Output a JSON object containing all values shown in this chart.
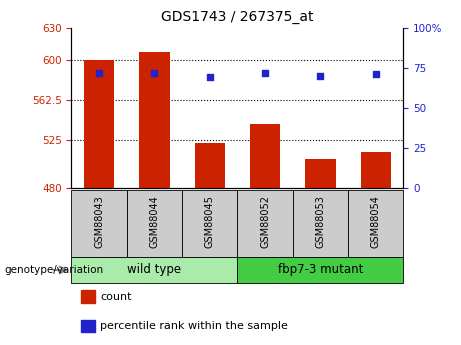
{
  "title": "GDS1743 / 267375_at",
  "samples": [
    "GSM88043",
    "GSM88044",
    "GSM88045",
    "GSM88052",
    "GSM88053",
    "GSM88054"
  ],
  "bar_values": [
    600,
    607,
    522,
    540,
    507,
    514
  ],
  "dot_values": [
    72,
    72,
    69,
    72,
    70,
    71
  ],
  "ylim_left": [
    480,
    630
  ],
  "ylim_right": [
    0,
    100
  ],
  "yticks_left": [
    480,
    525,
    562.5,
    600,
    630
  ],
  "ytick_labels_left": [
    "480",
    "525",
    "562.5",
    "600",
    "630"
  ],
  "yticks_right": [
    0,
    25,
    50,
    75,
    100
  ],
  "ytick_labels_right": [
    "0",
    "25",
    "50",
    "75",
    "100%"
  ],
  "hlines": [
    600,
    562.5,
    525
  ],
  "bar_color": "#cc2200",
  "dot_color": "#2222cc",
  "bar_width": 0.55,
  "groups": [
    {
      "label": "wild type",
      "color": "#aaeaaa",
      "start": 0,
      "end": 2
    },
    {
      "label": "fbp7-3 mutant",
      "color": "#44cc44",
      "start": 3,
      "end": 5
    }
  ],
  "xlabel": "genotype/variation",
  "legend_items": [
    {
      "label": "count",
      "color": "#cc2200"
    },
    {
      "label": "percentile rank within the sample",
      "color": "#2222cc"
    }
  ],
  "tick_label_color_left": "#cc2200",
  "tick_label_color_right": "#2222cc",
  "background_plot": "#ffffff",
  "background_sample": "#cccccc",
  "title_fontsize": 10,
  "tick_fontsize": 7.5,
  "sample_label_fontsize": 7,
  "group_label_fontsize": 8.5,
  "legend_fontsize": 8
}
